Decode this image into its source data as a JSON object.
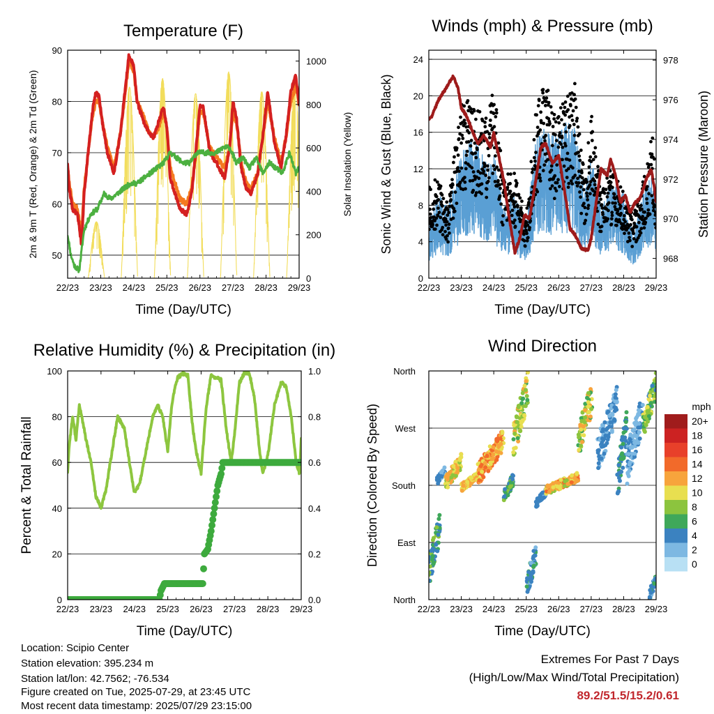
{
  "chart_data": [
    {
      "type": "line",
      "title": "Temperature (F)",
      "xlabel": "Time (Day/UTC)",
      "ylabel": "2m & 9m T (Red, Orange) & 2m Td (Green)",
      "y2label": "Solar Insolation (Yellow)",
      "x_ticks": [
        "22/23",
        "23/23",
        "24/23",
        "25/23",
        "26/23",
        "27/23",
        "28/23",
        "29/23"
      ],
      "xlim": [
        0,
        7
      ],
      "ylim": [
        45.5,
        90
      ],
      "y_ticks": [
        50,
        60,
        70,
        80,
        90
      ],
      "y2lim": [
        0,
        1050
      ],
      "y2_ticks": [
        0,
        200,
        400,
        600,
        800,
        1000
      ],
      "grid": true,
      "colors": {
        "t2m": "#d42020",
        "t9m": "#f47a20",
        "td": "#4cb040",
        "solar": "#f2dd5c"
      },
      "series": [
        {
          "key": "t2m",
          "x": [
            0,
            0.05,
            0.15,
            0.3,
            0.42,
            0.5,
            0.62,
            0.75,
            0.85,
            0.95,
            1.05,
            1.2,
            1.4,
            1.6,
            1.75,
            1.85,
            2.0,
            2.1,
            2.3,
            2.45,
            2.6,
            2.75,
            2.9,
            3.0,
            3.1,
            3.25,
            3.4,
            3.6,
            3.75,
            3.9,
            4.0,
            4.1,
            4.3,
            4.5,
            4.75,
            4.9,
            5.0,
            5.1,
            5.25,
            5.4,
            5.55,
            5.75,
            5.9,
            6.05,
            6.25,
            6.45,
            6.6,
            6.75,
            6.9,
            7.0
          ],
          "y": [
            68,
            63,
            59,
            58,
            52,
            62,
            70,
            78,
            82,
            81,
            76,
            70,
            66,
            74,
            83,
            89,
            87,
            80,
            76,
            74,
            73,
            76,
            79,
            75,
            65,
            62,
            59,
            58,
            62,
            72,
            79,
            79,
            70,
            68,
            65,
            71,
            80,
            77,
            67,
            63,
            62,
            66,
            73,
            82,
            72,
            67,
            73,
            82,
            85,
            79
          ]
        },
        {
          "key": "t9m",
          "x": [
            0,
            0.05,
            0.15,
            0.3,
            0.42,
            0.5,
            0.62,
            0.75,
            0.85,
            0.95,
            1.05,
            1.2,
            1.4,
            1.6,
            1.75,
            1.85,
            2.0,
            2.1,
            2.3,
            2.45,
            2.6,
            2.75,
            2.9,
            3.0,
            3.1,
            3.25,
            3.4,
            3.6,
            3.75,
            3.9,
            4.0,
            4.1,
            4.3,
            4.5,
            4.75,
            4.9,
            5.0,
            5.1,
            5.25,
            5.4,
            5.55,
            5.75,
            5.9,
            6.05,
            6.25,
            6.45,
            6.6,
            6.75,
            6.9,
            7.0
          ],
          "y": [
            67,
            64,
            60,
            59,
            54,
            63,
            70,
            77,
            80,
            80,
            76,
            71,
            67,
            74,
            82,
            88,
            86,
            80,
            77,
            74,
            73,
            75,
            78,
            75,
            67,
            64,
            61,
            60,
            63,
            71,
            78,
            78,
            71,
            69,
            67,
            71,
            78,
            76,
            68,
            64,
            63,
            66,
            73,
            80,
            73,
            68,
            73,
            80,
            83,
            80
          ]
        },
        {
          "key": "td",
          "x": [
            0,
            0.1,
            0.2,
            0.35,
            0.5,
            0.7,
            0.9,
            1.1,
            1.3,
            1.5,
            1.7,
            1.9,
            2.1,
            2.3,
            2.5,
            2.7,
            2.9,
            3.1,
            3.3,
            3.5,
            3.7,
            3.9,
            4.1,
            4.3,
            4.5,
            4.7,
            4.9,
            5.1,
            5.3,
            5.5,
            5.7,
            5.9,
            6.1,
            6.3,
            6.5,
            6.7,
            6.9,
            7.0
          ],
          "y": [
            54,
            50,
            48,
            47,
            55,
            58,
            59,
            62,
            61,
            62,
            63,
            64,
            64,
            65,
            66,
            67,
            68,
            70,
            69,
            68,
            68,
            70,
            70,
            70,
            70,
            71,
            71,
            68,
            69,
            67,
            69,
            66,
            68,
            67,
            66,
            70,
            66,
            67
          ]
        },
        {
          "key": "solar",
          "days": [
            0,
            1,
            2,
            3,
            4,
            5,
            6
          ],
          "peak": [
            260,
            880,
            920,
            850,
            950,
            860,
            900
          ]
        }
      ]
    },
    {
      "type": "scatter",
      "title": "Winds (mph) & Pressure (mb)",
      "xlabel": "Time (Day/UTC)",
      "ylabel": "Sonic Wind & Gust (Blue, Black)",
      "y2label": "Station Pressure (Maroon)",
      "x_ticks": [
        "22/23",
        "23/23",
        "24/23",
        "25/23",
        "26/23",
        "27/23",
        "28/23",
        "29/23"
      ],
      "xlim": [
        0,
        7
      ],
      "ylim": [
        0,
        25
      ],
      "y_ticks": [
        0,
        4,
        8,
        12,
        16,
        20,
        24
      ],
      "y2lim": [
        967,
        978.5
      ],
      "y2_ticks": [
        968,
        970,
        972,
        974,
        976,
        978
      ],
      "grid": true,
      "colors": {
        "wind": "#5a9fd4",
        "gust": "#000000",
        "pressure": "#9e1b1b"
      },
      "wind_mean": {
        "x": [
          0,
          0.3,
          0.6,
          1.0,
          1.4,
          1.8,
          2.0,
          2.3,
          2.6,
          3.0,
          3.3,
          3.6,
          3.9,
          4.2,
          4.5,
          4.8,
          5.0,
          5.3,
          5.6,
          6.0,
          6.3,
          6.6,
          6.9,
          7.0
        ],
        "y": [
          4,
          6,
          5,
          9,
          10,
          8,
          9,
          5,
          6,
          4,
          10,
          11,
          10,
          11,
          11,
          6,
          9,
          5,
          7,
          6,
          3,
          6,
          8,
          5
        ]
      },
      "gust_mean": {
        "x": [
          0,
          0.3,
          0.6,
          1.0,
          1.4,
          1.8,
          2.0,
          2.3,
          2.6,
          3.0,
          3.3,
          3.6,
          3.9,
          4.2,
          4.5,
          4.8,
          5.0,
          5.3,
          5.6,
          6.0,
          6.3,
          6.6,
          6.9,
          7.0
        ],
        "y": [
          8,
          8,
          6,
          15,
          14,
          13,
          16,
          8,
          9,
          5,
          14,
          16,
          13,
          15,
          16,
          8,
          14,
          7,
          9,
          7,
          5,
          8,
          12,
          7
        ]
      },
      "pressure": {
        "x": [
          0,
          0.1,
          0.3,
          0.5,
          0.75,
          0.9,
          1.0,
          1.15,
          1.3,
          1.5,
          1.7,
          1.9,
          2.0,
          2.15,
          2.3,
          2.5,
          2.65,
          2.8,
          2.95,
          3.1,
          3.3,
          3.45,
          3.6,
          3.8,
          4.0,
          4.2,
          4.35,
          4.5,
          4.7,
          4.9,
          5.0,
          5.1,
          5.3,
          5.5,
          5.6,
          5.75,
          5.9,
          6.05,
          6.2,
          6.35,
          6.5,
          6.7,
          6.85,
          6.95,
          7.0
        ],
        "y": [
          975,
          975.2,
          976,
          976.5,
          977.2,
          976.6,
          975.6,
          975.2,
          974.6,
          973.8,
          974.2,
          973.6,
          974.3,
          973.2,
          972.0,
          969.8,
          968.3,
          969.0,
          970.2,
          970.0,
          972.0,
          973.6,
          973.8,
          972.8,
          973.2,
          971.2,
          969.5,
          969.2,
          968.5,
          968.4,
          969.0,
          970.2,
          972.5,
          972.2,
          973.0,
          972.2,
          970.8,
          971.2,
          970.3,
          970.8,
          971.0,
          972.0,
          972.5,
          971.5,
          970.8
        ]
      }
    },
    {
      "type": "line",
      "title": "Relative Humidity (%) & Precipitation (in)",
      "xlabel": "Time (Day/UTC)",
      "ylabel": "Percent & Total Rainfall",
      "x_ticks": [
        "22/23",
        "23/23",
        "24/23",
        "25/23",
        "26/23",
        "27/23",
        "28/23",
        "29/23"
      ],
      "xlim": [
        0,
        7
      ],
      "ylim": [
        0,
        100
      ],
      "y_ticks": [
        0,
        20,
        40,
        60,
        80,
        100
      ],
      "y2lim": [
        0,
        1.0
      ],
      "y2_ticks": [
        "0.0",
        "0.2",
        "0.4",
        "0.6",
        "0.8",
        "1.0"
      ],
      "grid": true,
      "colors": {
        "rh": "#8dc63f",
        "precip": "#3daa3d"
      },
      "series": [
        {
          "key": "rh",
          "x": [
            0,
            0.05,
            0.15,
            0.25,
            0.35,
            0.45,
            0.55,
            0.7,
            0.85,
            1.0,
            1.15,
            1.3,
            1.5,
            1.7,
            1.85,
            2.0,
            2.15,
            2.35,
            2.55,
            2.7,
            2.85,
            3.0,
            3.1,
            3.2,
            3.3,
            3.45,
            3.6,
            3.75,
            3.85,
            4.0,
            4.15,
            4.3,
            4.45,
            4.6,
            4.75,
            4.9,
            5.0,
            5.15,
            5.3,
            5.45,
            5.6,
            5.75,
            5.85,
            6.0,
            6.2,
            6.4,
            6.55,
            6.7,
            6.85,
            6.95,
            7.0
          ],
          "y": [
            56,
            68,
            80,
            70,
            85,
            78,
            70,
            60,
            45,
            40,
            48,
            62,
            80,
            75,
            60,
            47,
            50,
            65,
            80,
            85,
            80,
            65,
            82,
            92,
            97,
            99,
            98,
            75,
            65,
            55,
            84,
            98,
            97,
            96,
            75,
            60,
            72,
            95,
            99,
            99,
            88,
            65,
            55,
            63,
            85,
            95,
            93,
            80,
            60,
            55,
            70
          ]
        },
        {
          "key": "precip",
          "x": [
            0,
            2.75,
            2.8,
            2.9,
            3.5,
            4.05,
            4.1,
            4.2,
            4.3,
            4.4,
            4.5,
            4.6,
            4.65,
            4.7,
            7.0
          ],
          "y": [
            0,
            0,
            0.04,
            0.07,
            0.07,
            0.07,
            0.2,
            0.22,
            0.3,
            0.4,
            0.5,
            0.55,
            0.6,
            0.6,
            0.6
          ]
        }
      ]
    },
    {
      "type": "scatter",
      "title": "Wind Direction",
      "xlabel": "Time (Day/UTC)",
      "ylabel": "Direction (Colored By Speed)",
      "x_ticks": [
        "22/23",
        "23/23",
        "24/23",
        "25/23",
        "26/23",
        "27/23",
        "28/23",
        "29/23"
      ],
      "xlim": [
        0,
        7
      ],
      "ylim": [
        0,
        360
      ],
      "y_ticks": [
        "North",
        "East",
        "South",
        "West",
        "North"
      ],
      "grid": true,
      "legend": {
        "title": "mph",
        "position": "right",
        "labels": [
          "20+",
          "18",
          "16",
          "14",
          "12",
          "10",
          "8",
          "6",
          "4",
          "2",
          "0"
        ],
        "colors": [
          "#a01c1c",
          "#cc2222",
          "#e8402a",
          "#f26a2a",
          "#f7a43c",
          "#e8df50",
          "#8cc43e",
          "#3fa85a",
          "#3b82c0",
          "#7db8e2",
          "#b8e0f4"
        ]
      },
      "clusters": [
        {
          "x": [
            0,
            0.35
          ],
          "dir": [
            20,
            140
          ],
          "speed": [
            3,
            8
          ]
        },
        {
          "x": [
            0.25,
            0.5
          ],
          "dir": [
            180,
            210
          ],
          "speed": [
            2,
            5
          ]
        },
        {
          "x": [
            0.5,
            1.0
          ],
          "dir": [
            170,
            230
          ],
          "speed": [
            8,
            13
          ]
        },
        {
          "x": [
            1.0,
            1.5
          ],
          "dir": [
            170,
            200
          ],
          "speed": [
            9,
            13
          ]
        },
        {
          "x": [
            1.5,
            2.3
          ],
          "dir": [
            180,
            270
          ],
          "speed": [
            9,
            15
          ]
        },
        {
          "x": [
            2.3,
            2.6
          ],
          "dir": [
            150,
            200
          ],
          "speed": [
            3,
            8
          ]
        },
        {
          "x": [
            2.6,
            3.05
          ],
          "dir": [
            220,
            360
          ],
          "speed": [
            6,
            12
          ]
        },
        {
          "x": [
            3.0,
            3.3
          ],
          "dir": [
            0,
            90
          ],
          "speed": [
            2,
            6
          ]
        },
        {
          "x": [
            3.3,
            3.6
          ],
          "dir": [
            145,
            175
          ],
          "speed": [
            2,
            5
          ]
        },
        {
          "x": [
            3.6,
            4.6
          ],
          "dir": [
            165,
            200
          ],
          "speed": [
            8,
            14
          ]
        },
        {
          "x": [
            4.6,
            5.05
          ],
          "dir": [
            220,
            350
          ],
          "speed": [
            6,
            13
          ]
        },
        {
          "x": [
            5.2,
            5.8
          ],
          "dir": [
            200,
            340
          ],
          "speed": [
            1,
            5
          ]
        },
        {
          "x": [
            5.8,
            6.1
          ],
          "dir": [
            150,
            300
          ],
          "speed": [
            3,
            6
          ]
        },
        {
          "x": [
            6.1,
            6.6
          ],
          "dir": [
            180,
            330
          ],
          "speed": [
            1,
            4
          ]
        },
        {
          "x": [
            6.6,
            7.0
          ],
          "dir": [
            250,
            360
          ],
          "speed": [
            4,
            10
          ]
        },
        {
          "x": [
            6.8,
            7.0
          ],
          "dir": [
            0,
            40
          ],
          "speed": [
            2,
            6
          ]
        }
      ]
    }
  ],
  "station_info": {
    "location": "Location: Scipio Center",
    "elevation": "Station elevation: 395.234 m",
    "latlon": "Station lat/lon: 42.7562; -76.534",
    "created": "Figure created on Tue, 2025-07-29, at 23:45 UTC",
    "latest": "Most recent data timestamp: 2025/07/29 23:15:00"
  },
  "extremes": {
    "title": "Extremes For Past 7 Days",
    "subtitle": "(High/Low/Max Wind/Total Precipitation)",
    "values": "89.2/51.5/15.2/0.61",
    "color": "#c1272d"
  }
}
